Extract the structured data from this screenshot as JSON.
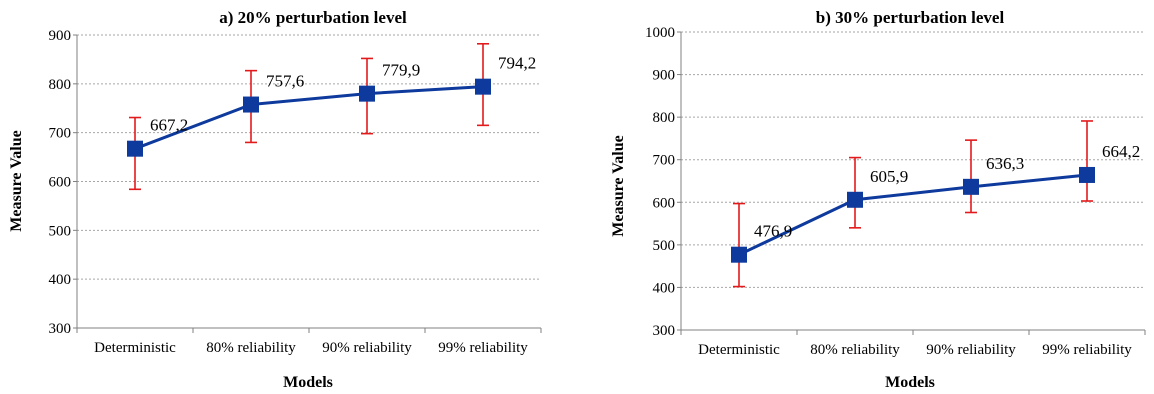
{
  "chart_data": [
    {
      "type": "line",
      "title": "a) 20% perturbation level",
      "xlabel": "Models",
      "ylabel": "Measure Value",
      "categories": [
        "Deterministic",
        "80% reliability",
        "90% reliability",
        "99% reliability"
      ],
      "values": [
        667.2,
        757.6,
        779.9,
        794.2
      ],
      "value_labels": [
        "667,2",
        "757,6",
        "779,9",
        "794,2"
      ],
      "error_low": [
        584,
        680,
        698,
        715
      ],
      "error_high": [
        731,
        827,
        852,
        882
      ],
      "ylim": [
        300,
        900
      ],
      "yticks": [
        300,
        400,
        500,
        600,
        700,
        800,
        900
      ],
      "grid": true,
      "colors": {
        "line": "#0d3a9c",
        "error_bars": "#e31a1c"
      }
    },
    {
      "type": "line",
      "title": "b) 30% perturbation level",
      "xlabel": "Models",
      "ylabel": "Measure Value",
      "categories": [
        "Deterministic",
        "80% reliability",
        "90% reliability",
        "99% reliability"
      ],
      "values": [
        476.9,
        605.9,
        636.3,
        664.2
      ],
      "value_labels": [
        "476,9",
        "605,9",
        "636,3",
        "664,2"
      ],
      "error_low": [
        402,
        540,
        576,
        603
      ],
      "error_high": [
        597,
        705,
        746,
        791
      ],
      "ylim": [
        300,
        1000
      ],
      "yticks": [
        300,
        400,
        500,
        600,
        700,
        800,
        900,
        1000
      ],
      "grid": true,
      "colors": {
        "line": "#0d3a9c",
        "error_bars": "#e31a1c"
      }
    }
  ]
}
